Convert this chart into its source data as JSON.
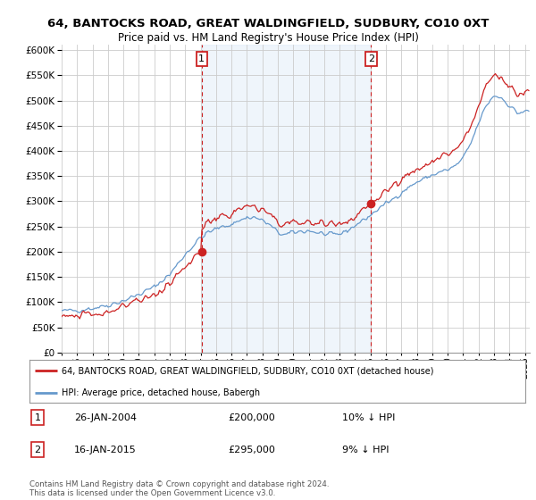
{
  "title": "64, BANTOCKS ROAD, GREAT WALDINGFIELD, SUDBURY, CO10 0XT",
  "subtitle": "Price paid vs. HM Land Registry's House Price Index (HPI)",
  "legend_line1": "64, BANTOCKS ROAD, GREAT WALDINGFIELD, SUDBURY, CO10 0XT (detached house)",
  "legend_line2": "HPI: Average price, detached house, Babergh",
  "annotation1_label": "1",
  "annotation1_date": "26-JAN-2004",
  "annotation1_price": "£200,000",
  "annotation1_hpi": "10% ↓ HPI",
  "annotation2_label": "2",
  "annotation2_date": "16-JAN-2015",
  "annotation2_price": "£295,000",
  "annotation2_hpi": "9% ↓ HPI",
  "footer": "Contains HM Land Registry data © Crown copyright and database right 2024.\nThis data is licensed under the Open Government Licence v3.0.",
  "hpi_color": "#6699cc",
  "sale_color": "#cc2222",
  "sale1_year": 2004.07,
  "sale2_year": 2015.04,
  "sale1_price": 200000,
  "sale2_price": 295000,
  "ylim_min": 0,
  "ylim_max": 610000,
  "xlim_min": 1995.0,
  "xlim_max": 2025.3,
  "background_color": "#ffffff",
  "grid_color": "#cccccc",
  "shade_color": "#ddeeff"
}
